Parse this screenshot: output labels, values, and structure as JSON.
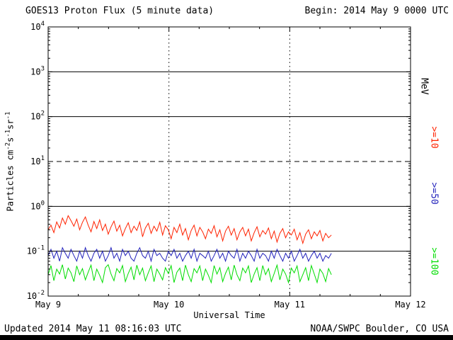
{
  "header": {
    "title": "GOES13 Proton Flux (5 minute data)",
    "begin_label": "Begin: 2014 May 9 0000 UTC"
  },
  "footer": {
    "updated": "Updated 2014 May 11 08:16:03 UTC",
    "source": "NOAA/SWPC Boulder, CO USA"
  },
  "chart_data": {
    "type": "line",
    "title": "GOES13 Proton Flux (5 minute data)",
    "xlabel": "Universal Time",
    "ylabel": "Particles cm-2s-1sr-1",
    "ylabel_parts": [
      [
        "Particles cm",
        "n"
      ],
      [
        "-2",
        "s"
      ],
      [
        "s",
        "n"
      ],
      [
        "-1",
        "s"
      ],
      [
        "sr",
        "n"
      ],
      [
        "-1",
        "s"
      ]
    ],
    "right_axis_label": "MeV",
    "y_scale": "log",
    "y_exponent_range": [
      -2,
      4
    ],
    "y_ticks_exponents": [
      4,
      3,
      2,
      1,
      0,
      -1,
      -2
    ],
    "solid_y_exponents": [
      3,
      2,
      0,
      -1
    ],
    "dashed_y_exponent": 1,
    "x_range_days": [
      0,
      3
    ],
    "x_ticks": [
      {
        "t": 0,
        "label": "May 9"
      },
      {
        "t": 1,
        "label": "May 10"
      },
      {
        "t": 2,
        "label": "May 11"
      },
      {
        "t": 3,
        "label": "May 12"
      }
    ],
    "grid": {
      "vertical_day_lines": "dotted"
    },
    "series": [
      {
        "key": "ge10",
        "name": ">=10",
        "color": "#ff2200",
        "x_start_days": 0,
        "x_end_days": 2.345,
        "values": [
          0.3,
          0.38,
          0.26,
          0.45,
          0.33,
          0.55,
          0.4,
          0.62,
          0.48,
          0.36,
          0.52,
          0.3,
          0.44,
          0.58,
          0.38,
          0.27,
          0.46,
          0.32,
          0.5,
          0.29,
          0.4,
          0.24,
          0.35,
          0.47,
          0.28,
          0.38,
          0.22,
          0.32,
          0.43,
          0.26,
          0.36,
          0.29,
          0.45,
          0.21,
          0.33,
          0.42,
          0.25,
          0.36,
          0.28,
          0.44,
          0.23,
          0.37,
          0.3,
          0.19,
          0.34,
          0.26,
          0.4,
          0.23,
          0.32,
          0.18,
          0.29,
          0.38,
          0.22,
          0.34,
          0.27,
          0.19,
          0.31,
          0.25,
          0.37,
          0.21,
          0.3,
          0.17,
          0.28,
          0.36,
          0.23,
          0.32,
          0.18,
          0.27,
          0.34,
          0.22,
          0.31,
          0.17,
          0.26,
          0.35,
          0.21,
          0.29,
          0.24,
          0.33,
          0.19,
          0.28,
          0.16,
          0.25,
          0.32,
          0.2,
          0.27,
          0.23,
          0.31,
          0.18,
          0.26,
          0.15,
          0.24,
          0.3,
          0.19,
          0.27,
          0.22,
          0.29,
          0.17,
          0.25,
          0.2,
          0.23
        ]
      },
      {
        "key": "ge50",
        "name": ">=50",
        "color": "#2222bb",
        "x_start_days": 0,
        "x_end_days": 2.345,
        "values": [
          0.08,
          0.11,
          0.07,
          0.1,
          0.06,
          0.12,
          0.09,
          0.07,
          0.11,
          0.08,
          0.06,
          0.1,
          0.07,
          0.12,
          0.08,
          0.06,
          0.09,
          0.11,
          0.07,
          0.1,
          0.06,
          0.08,
          0.12,
          0.07,
          0.09,
          0.06,
          0.11,
          0.08,
          0.1,
          0.07,
          0.06,
          0.09,
          0.12,
          0.08,
          0.07,
          0.1,
          0.06,
          0.11,
          0.08,
          0.09,
          0.07,
          0.06,
          0.1,
          0.08,
          0.11,
          0.07,
          0.09,
          0.06,
          0.08,
          0.1,
          0.07,
          0.11,
          0.06,
          0.09,
          0.08,
          0.07,
          0.1,
          0.06,
          0.08,
          0.11,
          0.07,
          0.09,
          0.06,
          0.1,
          0.08,
          0.07,
          0.11,
          0.06,
          0.09,
          0.07,
          0.1,
          0.08,
          0.06,
          0.11,
          0.07,
          0.09,
          0.08,
          0.06,
          0.1,
          0.07,
          0.11,
          0.08,
          0.06,
          0.09,
          0.07,
          0.1,
          0.06,
          0.08,
          0.11,
          0.07,
          0.09,
          0.06,
          0.08,
          0.1,
          0.07,
          0.09,
          0.06,
          0.08,
          0.07,
          0.09
        ]
      },
      {
        "key": "ge100",
        "name": ">=100",
        "color": "#00dd00",
        "x_start_days": 0,
        "x_end_days": 2.345,
        "values": [
          0.03,
          0.048,
          0.022,
          0.04,
          0.031,
          0.05,
          0.024,
          0.042,
          0.033,
          0.021,
          0.047,
          0.03,
          0.041,
          0.023,
          0.034,
          0.049,
          0.022,
          0.04,
          0.029,
          0.02,
          0.043,
          0.05,
          0.031,
          0.022,
          0.041,
          0.033,
          0.048,
          0.021,
          0.032,
          0.044,
          0.023,
          0.049,
          0.03,
          0.042,
          0.022,
          0.033,
          0.047,
          0.021,
          0.04,
          0.031,
          0.023,
          0.043,
          0.032,
          0.048,
          0.02,
          0.034,
          0.042,
          0.022,
          0.049,
          0.03,
          0.021,
          0.041,
          0.033,
          0.047,
          0.022,
          0.04,
          0.029,
          0.02,
          0.048,
          0.031,
          0.043,
          0.021,
          0.032,
          0.044,
          0.023,
          0.049,
          0.03,
          0.022,
          0.042,
          0.033,
          0.047,
          0.02,
          0.031,
          0.043,
          0.022,
          0.048,
          0.03,
          0.041,
          0.021,
          0.032,
          0.049,
          0.023,
          0.04,
          0.031,
          0.02,
          0.042,
          0.033,
          0.047,
          0.021,
          0.03,
          0.043,
          0.022,
          0.048,
          0.031,
          0.02,
          0.04,
          0.032,
          0.021,
          0.041,
          0.03
        ]
      }
    ]
  }
}
